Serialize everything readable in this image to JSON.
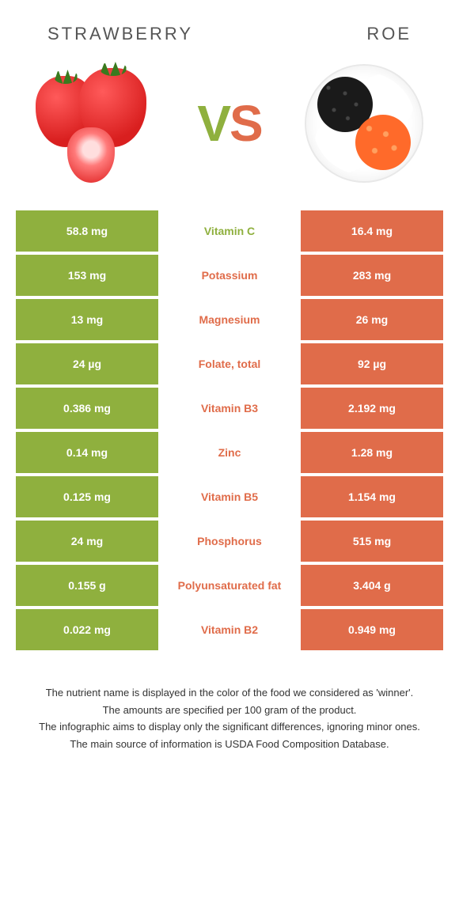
{
  "colors": {
    "left": "#8fb03e",
    "right": "#e06c4a",
    "row_gap": "#ffffff"
  },
  "header": {
    "left_title": "Strawberry",
    "right_title": "Roe",
    "vs_v": "V",
    "vs_s": "S"
  },
  "rows": [
    {
      "left": "58.8 mg",
      "name": "Vitamin C",
      "right": "16.4 mg",
      "winner": "left"
    },
    {
      "left": "153 mg",
      "name": "Potassium",
      "right": "283 mg",
      "winner": "right"
    },
    {
      "left": "13 mg",
      "name": "Magnesium",
      "right": "26 mg",
      "winner": "right"
    },
    {
      "left": "24 µg",
      "name": "Folate, total",
      "right": "92 µg",
      "winner": "right"
    },
    {
      "left": "0.386 mg",
      "name": "Vitamin B3",
      "right": "2.192 mg",
      "winner": "right"
    },
    {
      "left": "0.14 mg",
      "name": "Zinc",
      "right": "1.28 mg",
      "winner": "right"
    },
    {
      "left": "0.125 mg",
      "name": "Vitamin B5",
      "right": "1.154 mg",
      "winner": "right"
    },
    {
      "left": "24 mg",
      "name": "Phosphorus",
      "right": "515 mg",
      "winner": "right"
    },
    {
      "left": "0.155 g",
      "name": "Polyunsaturated fat",
      "right": "3.404 g",
      "winner": "right"
    },
    {
      "left": "0.022 mg",
      "name": "Vitamin B2",
      "right": "0.949 mg",
      "winner": "right"
    }
  ],
  "footer": {
    "line1": "The nutrient name is displayed in the color of the food we considered as 'winner'.",
    "line2": "The amounts are specified per 100 gram of the product.",
    "line3": "The infographic aims to display only the significant differences, ignoring minor ones.",
    "line4": "The main source of information is USDA Food Composition Database."
  }
}
